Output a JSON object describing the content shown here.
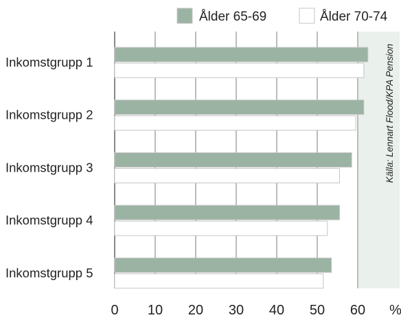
{
  "chart_data": {
    "type": "bar",
    "orientation": "horizontal",
    "categories": [
      "Inkomstgrupp 1",
      "Inkomstgrupp 2",
      "Inkomstgrupp 3",
      "Inkomstgrupp 4",
      "Inkomstgrupp 5"
    ],
    "series": [
      {
        "name": "Ålder 65-69",
        "values": [
          62.5,
          61.5,
          58.5,
          55.5,
          53.5
        ],
        "color": "#9bb3a3"
      },
      {
        "name": "Ålder 70-74",
        "values": [
          61.5,
          59.5,
          55.5,
          52.5,
          51.5
        ],
        "color": "#ffffff"
      }
    ],
    "xticks": [
      "0",
      "10",
      "20",
      "30",
      "40",
      "50",
      "60"
    ],
    "xunit": "%",
    "xlim": [
      0,
      70
    ],
    "grid": true,
    "legend_position": "top-right",
    "source": "Källa: Lennart Flood/KPA Pension",
    "colors": {
      "plot_background": "#ffffff",
      "panel_background": "#eaf0ec",
      "grid": "#555555",
      "bar_outline": "#c4c4c4"
    }
  }
}
